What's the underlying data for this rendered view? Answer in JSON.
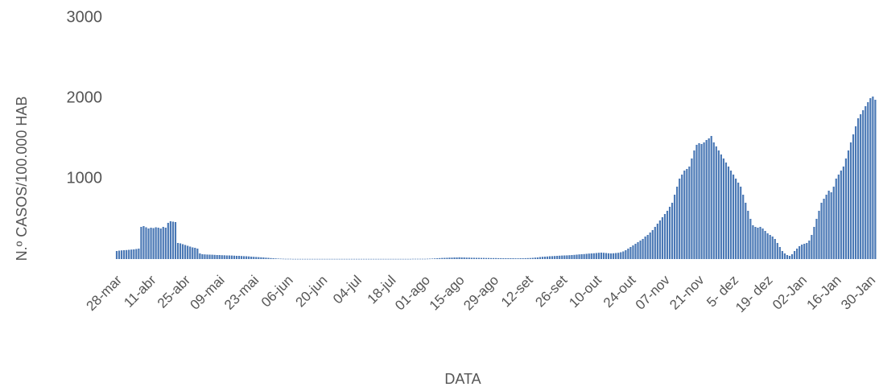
{
  "chart_data": {
    "type": "bar",
    "y_label": "N.º CASOS/100.000 HAB",
    "x_label": "DATA",
    "color": "#4a78b5",
    "ylim": [
      0,
      3000
    ],
    "yticks": [
      1000,
      2000,
      3000
    ],
    "grid": false,
    "categories": [
      "28-mar",
      null,
      null,
      null,
      null,
      null,
      null,
      null,
      null,
      null,
      null,
      null,
      null,
      null,
      "11-abr",
      null,
      null,
      null,
      null,
      null,
      null,
      null,
      null,
      null,
      null,
      null,
      null,
      null,
      "25-abr",
      null,
      null,
      null,
      null,
      null,
      null,
      null,
      null,
      null,
      null,
      null,
      null,
      null,
      "09-mai",
      null,
      null,
      null,
      null,
      null,
      null,
      null,
      null,
      null,
      null,
      null,
      null,
      null,
      "23-mai",
      null,
      null,
      null,
      null,
      null,
      null,
      null,
      null,
      null,
      null,
      null,
      null,
      null,
      "06-jun",
      null,
      null,
      null,
      null,
      null,
      null,
      null,
      null,
      null,
      null,
      null,
      null,
      null,
      "20-jun",
      null,
      null,
      null,
      null,
      null,
      null,
      null,
      null,
      null,
      null,
      null,
      null,
      null,
      "04-jul",
      null,
      null,
      null,
      null,
      null,
      null,
      null,
      null,
      null,
      null,
      null,
      null,
      null,
      "18-jul",
      null,
      null,
      null,
      null,
      null,
      null,
      null,
      null,
      null,
      null,
      null,
      null,
      null,
      "01-ago",
      null,
      null,
      null,
      null,
      null,
      null,
      null,
      null,
      null,
      null,
      null,
      null,
      null,
      "15-ago",
      null,
      null,
      null,
      null,
      null,
      null,
      null,
      null,
      null,
      null,
      null,
      null,
      null,
      "29-ago",
      null,
      null,
      null,
      null,
      null,
      null,
      null,
      null,
      null,
      null,
      null,
      null,
      null,
      "12-set",
      null,
      null,
      null,
      null,
      null,
      null,
      null,
      null,
      null,
      null,
      null,
      null,
      null,
      "26-set",
      null,
      null,
      null,
      null,
      null,
      null,
      null,
      null,
      null,
      null,
      null,
      null,
      null,
      "10-out",
      null,
      null,
      null,
      null,
      null,
      null,
      null,
      null,
      null,
      null,
      null,
      null,
      null,
      "24-out",
      null,
      null,
      null,
      null,
      null,
      null,
      null,
      null,
      null,
      null,
      null,
      null,
      null,
      "07-nov",
      null,
      null,
      null,
      null,
      null,
      null,
      null,
      null,
      null,
      null,
      null,
      null,
      null,
      "21-nov",
      null,
      null,
      null,
      null,
      null,
      null,
      null,
      null,
      null,
      null,
      null,
      null,
      null,
      "5- dez",
      null,
      null,
      null,
      null,
      null,
      null,
      null,
      null,
      null,
      null,
      null,
      null,
      null,
      "19- dez",
      null,
      null,
      null,
      null,
      null,
      null,
      null,
      null,
      null,
      null,
      null,
      null,
      null,
      "02-Jan",
      null,
      null,
      null,
      null,
      null,
      null,
      null,
      null,
      null,
      null,
      null,
      null,
      null,
      "16-Jan",
      null,
      null,
      null,
      null,
      null,
      null,
      null,
      null,
      null,
      null,
      null,
      null,
      null,
      "30-Jan",
      null,
      null
    ],
    "values": [
      100,
      105,
      108,
      110,
      112,
      115,
      118,
      120,
      125,
      130,
      400,
      410,
      395,
      380,
      390,
      385,
      395,
      390,
      380,
      400,
      390,
      450,
      470,
      465,
      460,
      200,
      195,
      185,
      175,
      165,
      155,
      145,
      140,
      130,
      70,
      60,
      58,
      56,
      55,
      54,
      52,
      50,
      50,
      48,
      47,
      45,
      45,
      44,
      42,
      40,
      40,
      38,
      36,
      35,
      33,
      30,
      28,
      26,
      24,
      22,
      20,
      17,
      15,
      12,
      10,
      8,
      6,
      5,
      4,
      3,
      3,
      3,
      2,
      2,
      2,
      2,
      2,
      2,
      2,
      2,
      2,
      2,
      2,
      2,
      2,
      2,
      2,
      2,
      2,
      2,
      2,
      2,
      2,
      2,
      2,
      2,
      2,
      2,
      2,
      2,
      2,
      2,
      2,
      2,
      2,
      2,
      2,
      2,
      2,
      2,
      2,
      2,
      2,
      2,
      2,
      2,
      2,
      2,
      2,
      2,
      2,
      3,
      3,
      3,
      3,
      3,
      3,
      4,
      5,
      6,
      8,
      10,
      12,
      14,
      15,
      16,
      18,
      18,
      20,
      20,
      22,
      20,
      20,
      18,
      18,
      16,
      16,
      15,
      15,
      14,
      14,
      13,
      13,
      12,
      12,
      12,
      11,
      11,
      10,
      10,
      10,
      10,
      10,
      9,
      9,
      10,
      10,
      11,
      12,
      13,
      15,
      18,
      20,
      25,
      28,
      30,
      32,
      35,
      36,
      38,
      40,
      42,
      44,
      45,
      46,
      48,
      50,
      52,
      55,
      58,
      60,
      62,
      65,
      68,
      70,
      72,
      75,
      78,
      80,
      78,
      75,
      72,
      70,
      72,
      75,
      78,
      85,
      95,
      110,
      130,
      150,
      170,
      190,
      210,
      230,
      250,
      280,
      300,
      330,
      360,
      400,
      440,
      480,
      520,
      560,
      600,
      650,
      700,
      800,
      900,
      1000,
      1050,
      1100,
      1120,
      1150,
      1250,
      1350,
      1420,
      1440,
      1430,
      1450,
      1480,
      1500,
      1530,
      1450,
      1400,
      1350,
      1300,
      1250,
      1200,
      1150,
      1100,
      1050,
      1000,
      950,
      900,
      800,
      700,
      600,
      500,
      420,
      400,
      390,
      400,
      380,
      350,
      320,
      300,
      280,
      250,
      200,
      150,
      100,
      70,
      50,
      40,
      60,
      100,
      130,
      160,
      180,
      190,
      200,
      230,
      300,
      400,
      500,
      600,
      700,
      750,
      800,
      850,
      830,
      900,
      1000,
      1050,
      1100,
      1150,
      1250,
      1350,
      1450,
      1550,
      1650,
      1750,
      1800,
      1850,
      1900,
      1950,
      2000,
      2020,
      1980
    ]
  }
}
